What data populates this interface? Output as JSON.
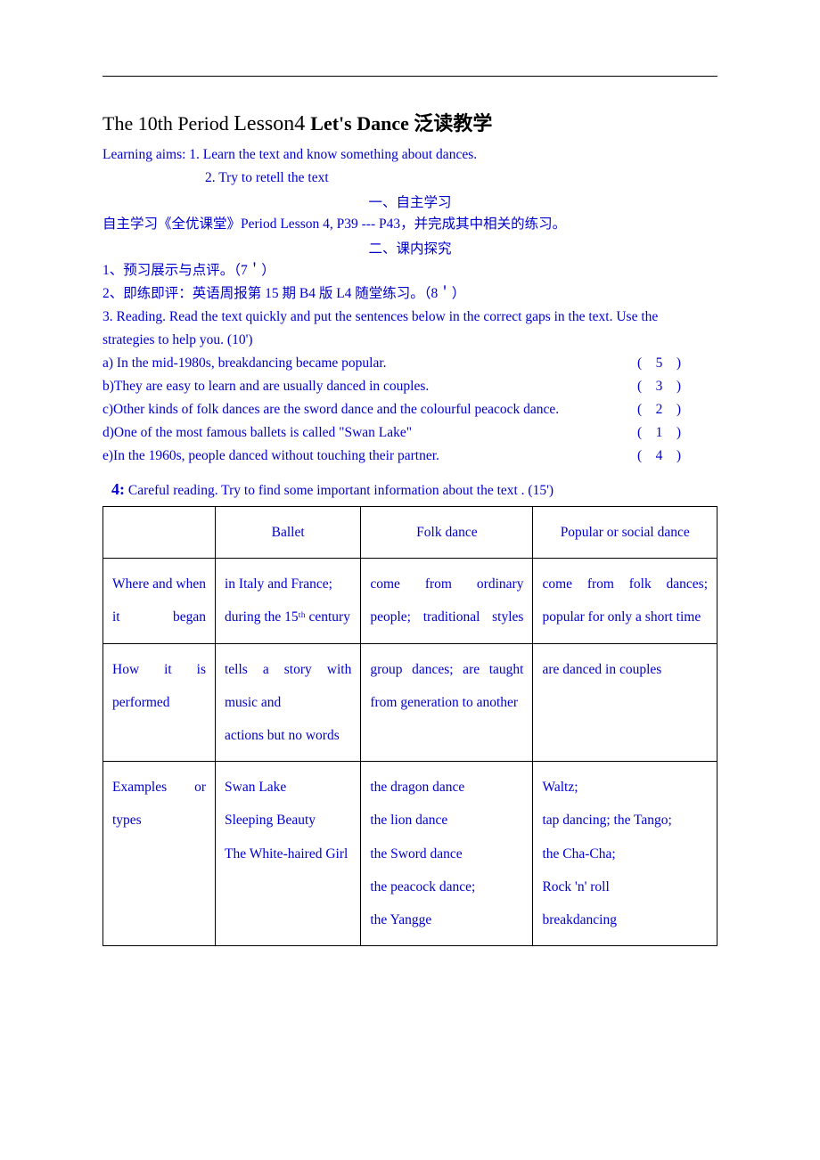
{
  "title_parts": {
    "p1": "The 10th Period ",
    "p2": "Lesson4 ",
    "p3": "Let's Dance ",
    "p4": "泛读教学"
  },
  "aims_label": "Learning aims: 1. Learn the text and know something about dances.",
  "aim2": "2. Try to retell the text",
  "section1": "一、自主学习",
  "line_self": "自主学习《全优课堂》Period Lesson 4, P39 --- P43，并完成其中相关的练习。",
  "section2": "二、课内探究",
  "line1": "1、预习展示与点评。（7＇）",
  "line2": "2、即练即评：英语周报第 15 期 B4 版  L4  随堂练习。（8＇）",
  "line3a": "3. Reading. Read the text quickly and put the sentences below in the correct gaps in the text. Use the",
  "line3b": "strategies to help you.    (10')",
  "questions": [
    {
      "t": "a) In the mid-1980s, breakdancing became popular.",
      "a": "(    5    )"
    },
    {
      "t": "b)They are easy to learn and are usually danced in couples.",
      "a": "(    3    )"
    },
    {
      "t": "c)Other kinds of folk dances are the sword dance and the colourful peacock dance.",
      "a": "(    2    )"
    },
    {
      "t": "d)One of the most famous ballets is called \"Swan Lake\"",
      "a": "(    1    )"
    },
    {
      "t": "e)In the 1960s, people danced without touching their partner.",
      "a": "(    4    )"
    }
  ],
  "sec4": {
    "num": "4:",
    "rest": " Careful reading. Try to find some important information about the text . (15')"
  },
  "table": {
    "headers": [
      "",
      "Ballet",
      "Folk dance",
      "Popular or social dance"
    ],
    "rows": [
      {
        "label": "Where and when it began",
        "c1": "in Italy and France; during the 15ᵗʰ century",
        "c2": "come from ordinary people; traditional styles",
        "c3": "come from folk dances; popular for only a short time"
      },
      {
        "label": "How it is performed",
        "c1": "tells a story with music and\nactions but no words",
        "c2": "group dances; are taught from generation to another",
        "c3": "are danced in couples"
      },
      {
        "label": "Examples or types",
        "c1": "Swan Lake\nSleeping Beauty\nThe White-haired Girl",
        "c2": "the dragon dance\nthe lion dance\nthe Sword dance\nthe peacock dance;\nthe Yangge",
        "c3": "Waltz;\ntap dancing; the Tango;\nthe Cha-Cha;\nRock 'n' roll\nbreakdancing"
      }
    ]
  },
  "colors": {
    "text": "#0000cc",
    "border": "#000000",
    "bg": "#ffffff"
  }
}
